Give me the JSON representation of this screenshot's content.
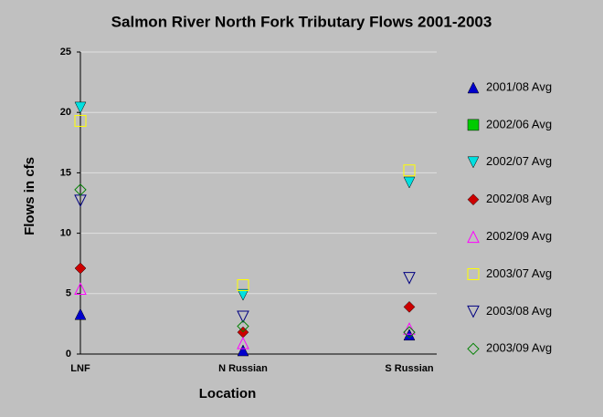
{
  "chart_data": {
    "type": "scatter",
    "title": "Salmon River North Fork Tributary Flows 2001-2003",
    "x_label": "Location",
    "y_label": "Flows in cfs",
    "categories": [
      "LNF",
      "N Russian",
      "S Russian"
    ],
    "ylim": [
      0,
      25
    ],
    "yticks": [
      0,
      5,
      10,
      15,
      20,
      25
    ],
    "grid": true,
    "legend": "right",
    "series": [
      {
        "name": "2001/08 Avg",
        "color": "#0000cc",
        "marker": "triangle-up",
        "filled": true,
        "values": [
          3.3,
          0.3,
          1.6
        ]
      },
      {
        "name": "2002/06 Avg",
        "color": "#00cc00",
        "marker": "square",
        "filled": true,
        "values": [
          null,
          null,
          null
        ]
      },
      {
        "name": "2002/07 Avg",
        "color": "#00e0e0",
        "marker": "triangle-down",
        "filled": true,
        "values": [
          20.4,
          4.9,
          14.2
        ]
      },
      {
        "name": "2002/08 Avg",
        "color": "#cc0000",
        "marker": "diamond",
        "filled": true,
        "values": [
          7.1,
          1.8,
          3.9
        ]
      },
      {
        "name": "2002/09 Avg",
        "color": "#ff00ff",
        "marker": "triangle-up",
        "filled": false,
        "values": [
          5.4,
          0.9,
          2.1
        ]
      },
      {
        "name": "2003/07 Avg",
        "color": "#ffff00",
        "marker": "square",
        "filled": false,
        "values": [
          19.3,
          5.7,
          15.2
        ]
      },
      {
        "name": "2003/08 Avg",
        "color": "#000080",
        "marker": "triangle-down",
        "filled": false,
        "values": [
          12.7,
          3.1,
          6.3
        ]
      },
      {
        "name": "2003/09 Avg",
        "color": "#008000",
        "marker": "diamond",
        "filled": false,
        "values": [
          13.6,
          2.3,
          1.8
        ]
      }
    ]
  }
}
